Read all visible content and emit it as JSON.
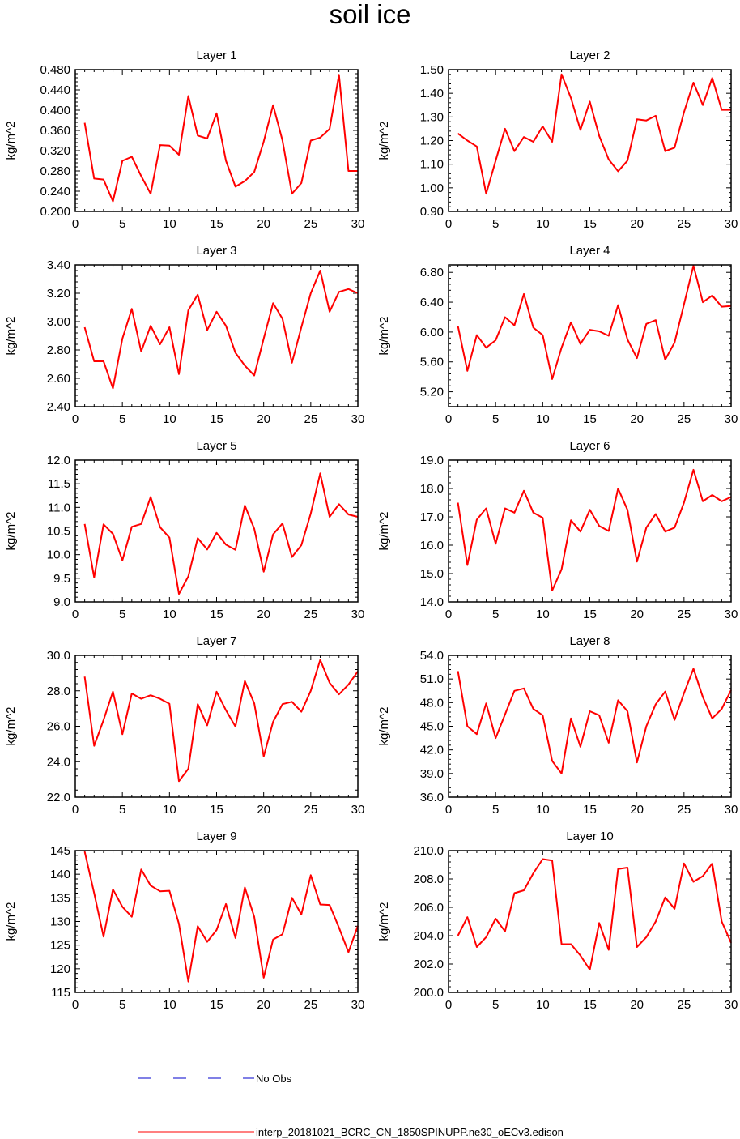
{
  "title": "soil ice",
  "colors": {
    "model": "#ff0000",
    "obs": "#0000cc",
    "axis": "#000000"
  },
  "legend": {
    "obs_label": "No Obs",
    "model_label": "interp_20181021_BCRC_CN_1850SPINUPP.ne30_oECv3.edison"
  },
  "chart_data": [
    {
      "type": "line",
      "title": "Layer 1",
      "ylabel": "kg/m^2",
      "xlim": [
        0,
        30
      ],
      "ylim": [
        0.2,
        0.48
      ],
      "xticks": [
        "0",
        "5",
        "10",
        "15",
        "20",
        "25",
        "30"
      ],
      "yticks": [
        "0.200",
        "0.240",
        "0.280",
        "0.320",
        "0.360",
        "0.400",
        "0.440",
        "0.480"
      ],
      "x": [
        1,
        2,
        3,
        4,
        5,
        6,
        7,
        8,
        9,
        10,
        11,
        12,
        13,
        14,
        15,
        16,
        17,
        18,
        19,
        20,
        21,
        22,
        23,
        24,
        25,
        26,
        27,
        28,
        29,
        30
      ],
      "series": [
        {
          "values": [
            0.375,
            0.265,
            0.263,
            0.22,
            0.3,
            0.308,
            0.27,
            0.235,
            0.331,
            0.33,
            0.312,
            0.428,
            0.35,
            0.344,
            0.394,
            0.3,
            0.249,
            0.26,
            0.278,
            0.338,
            0.41,
            0.34,
            0.235,
            0.256,
            0.34,
            0.346,
            0.363,
            0.47,
            0.28,
            0.28
          ]
        }
      ]
    },
    {
      "type": "line",
      "title": "Layer 2",
      "ylabel": "kg/m^2",
      "xlim": [
        0,
        30
      ],
      "ylim": [
        0.9,
        1.5
      ],
      "xticks": [
        "0",
        "5",
        "10",
        "15",
        "20",
        "25",
        "30"
      ],
      "yticks": [
        "0.90",
        "1.00",
        "1.10",
        "1.20",
        "1.30",
        "1.40",
        "1.50"
      ],
      "x": [
        1,
        2,
        3,
        4,
        5,
        6,
        7,
        8,
        9,
        10,
        11,
        12,
        13,
        14,
        15,
        16,
        17,
        18,
        19,
        20,
        21,
        22,
        23,
        24,
        25,
        26,
        27,
        28,
        29,
        30
      ],
      "series": [
        {
          "values": [
            1.23,
            1.2,
            1.175,
            0.975,
            1.115,
            1.25,
            1.155,
            1.215,
            1.195,
            1.26,
            1.195,
            1.48,
            1.38,
            1.245,
            1.365,
            1.22,
            1.12,
            1.07,
            1.115,
            1.29,
            1.285,
            1.305,
            1.155,
            1.17,
            1.32,
            1.445,
            1.35,
            1.465,
            1.33,
            1.33
          ]
        }
      ]
    },
    {
      "type": "line",
      "title": "Layer 3",
      "ylabel": "kg/m^2",
      "xlim": [
        0,
        30
      ],
      "ylim": [
        2.4,
        3.4
      ],
      "xticks": [
        "0",
        "5",
        "10",
        "15",
        "20",
        "25",
        "30"
      ],
      "yticks": [
        "2.40",
        "2.60",
        "2.80",
        "3.00",
        "3.20",
        "3.40"
      ],
      "x": [
        1,
        2,
        3,
        4,
        5,
        6,
        7,
        8,
        9,
        10,
        11,
        12,
        13,
        14,
        15,
        16,
        17,
        18,
        19,
        20,
        21,
        22,
        23,
        24,
        25,
        26,
        27,
        28,
        29,
        30
      ],
      "series": [
        {
          "values": [
            2.96,
            2.72,
            2.72,
            2.53,
            2.88,
            3.09,
            2.79,
            2.97,
            2.84,
            2.96,
            2.63,
            3.08,
            3.19,
            2.94,
            3.07,
            2.97,
            2.78,
            2.69,
            2.62,
            2.88,
            3.13,
            3.02,
            2.71,
            2.96,
            3.2,
            3.36,
            3.07,
            3.21,
            3.23,
            3.2
          ]
        }
      ]
    },
    {
      "type": "line",
      "title": "Layer 4",
      "ylabel": "kg/m^2",
      "xlim": [
        0,
        30
      ],
      "ylim": [
        5.0,
        6.9
      ],
      "xticks": [
        "0",
        "5",
        "10",
        "15",
        "20",
        "25",
        "30"
      ],
      "yticks": [
        "5.20",
        "5.60",
        "6.00",
        "6.40",
        "6.80"
      ],
      "x": [
        1,
        2,
        3,
        4,
        5,
        6,
        7,
        8,
        9,
        10,
        11,
        12,
        13,
        14,
        15,
        16,
        17,
        18,
        19,
        20,
        21,
        22,
        23,
        24,
        25,
        26,
        27,
        28,
        29,
        30
      ],
      "series": [
        {
          "values": [
            6.08,
            5.48,
            5.96,
            5.79,
            5.89,
            6.2,
            6.09,
            6.51,
            6.06,
            5.96,
            5.37,
            5.79,
            6.13,
            5.84,
            6.03,
            6.01,
            5.95,
            6.36,
            5.9,
            5.65,
            6.11,
            6.16,
            5.63,
            5.86,
            6.37,
            6.89,
            6.4,
            6.49,
            6.34,
            6.35
          ]
        }
      ]
    },
    {
      "type": "line",
      "title": "Layer 5",
      "ylabel": "kg/m^2",
      "xlim": [
        0,
        30
      ],
      "ylim": [
        9.0,
        12.0
      ],
      "xticks": [
        "0",
        "5",
        "10",
        "15",
        "20",
        "25",
        "30"
      ],
      "yticks": [
        "9.0",
        "9.5",
        "10.0",
        "10.5",
        "11.0",
        "11.5",
        "12.0"
      ],
      "x": [
        1,
        2,
        3,
        4,
        5,
        6,
        7,
        8,
        9,
        10,
        11,
        12,
        13,
        14,
        15,
        16,
        17,
        18,
        19,
        20,
        21,
        22,
        23,
        24,
        25,
        26,
        27,
        28,
        29,
        30
      ],
      "series": [
        {
          "values": [
            10.65,
            9.52,
            10.64,
            10.44,
            9.88,
            10.59,
            10.65,
            11.22,
            10.58,
            10.36,
            9.17,
            9.54,
            10.35,
            10.11,
            10.46,
            10.21,
            10.1,
            11.04,
            10.55,
            9.64,
            10.43,
            10.66,
            9.95,
            10.2,
            10.87,
            11.72,
            10.8,
            11.07,
            10.85,
            10.8
          ]
        }
      ]
    },
    {
      "type": "line",
      "title": "Layer 6",
      "ylabel": "kg/m^2",
      "xlim": [
        0,
        30
      ],
      "ylim": [
        14.0,
        19.0
      ],
      "xticks": [
        "0",
        "5",
        "10",
        "15",
        "20",
        "25",
        "30"
      ],
      "yticks": [
        "14.0",
        "15.0",
        "16.0",
        "17.0",
        "18.0",
        "19.0"
      ],
      "x": [
        1,
        2,
        3,
        4,
        5,
        6,
        7,
        8,
        9,
        10,
        11,
        12,
        13,
        14,
        15,
        16,
        17,
        18,
        19,
        20,
        21,
        22,
        23,
        24,
        25,
        26,
        27,
        28,
        29,
        30
      ],
      "series": [
        {
          "values": [
            17.5,
            15.3,
            16.9,
            17.3,
            16.05,
            17.3,
            17.15,
            17.92,
            17.15,
            16.97,
            14.4,
            15.15,
            16.88,
            16.48,
            17.25,
            16.68,
            16.5,
            18.0,
            17.25,
            15.42,
            16.62,
            17.1,
            16.48,
            16.62,
            17.5,
            18.66,
            17.55,
            17.77,
            17.55,
            17.7
          ]
        }
      ]
    },
    {
      "type": "line",
      "title": "Layer 7",
      "ylabel": "kg/m^2",
      "xlim": [
        0,
        30
      ],
      "ylim": [
        22.0,
        30.0
      ],
      "xticks": [
        "0",
        "5",
        "10",
        "15",
        "20",
        "25",
        "30"
      ],
      "yticks": [
        "22.0",
        "24.0",
        "26.0",
        "28.0",
        "30.0"
      ],
      "x": [
        1,
        2,
        3,
        4,
        5,
        6,
        7,
        8,
        9,
        10,
        11,
        12,
        13,
        14,
        15,
        16,
        17,
        18,
        19,
        20,
        21,
        22,
        23,
        24,
        25,
        26,
        27,
        28,
        29,
        30
      ],
      "series": [
        {
          "values": [
            28.8,
            24.9,
            26.35,
            27.95,
            25.55,
            27.85,
            27.55,
            27.75,
            27.55,
            27.27,
            22.9,
            23.6,
            27.25,
            26.05,
            27.95,
            26.9,
            25.98,
            28.55,
            27.3,
            24.3,
            26.25,
            27.25,
            27.38,
            26.82,
            28.0,
            29.75,
            28.45,
            27.8,
            28.35,
            29.1
          ]
        }
      ]
    },
    {
      "type": "line",
      "title": "Layer 8",
      "ylabel": "kg/m^2",
      "xlim": [
        0,
        30
      ],
      "ylim": [
        36.0,
        54.0
      ],
      "xticks": [
        "0",
        "5",
        "10",
        "15",
        "20",
        "25",
        "30"
      ],
      "yticks": [
        "36.0",
        "39.0",
        "42.0",
        "45.0",
        "48.0",
        "51.0",
        "54.0"
      ],
      "x": [
        1,
        2,
        3,
        4,
        5,
        6,
        7,
        8,
        9,
        10,
        11,
        12,
        13,
        14,
        15,
        16,
        17,
        18,
        19,
        20,
        21,
        22,
        23,
        24,
        25,
        26,
        27,
        28,
        29,
        30
      ],
      "series": [
        {
          "values": [
            52.0,
            45.0,
            44.0,
            47.9,
            43.5,
            46.5,
            49.5,
            49.8,
            47.2,
            46.4,
            40.6,
            39.0,
            46.0,
            42.4,
            46.9,
            46.4,
            42.9,
            48.3,
            46.9,
            40.4,
            45.0,
            47.8,
            49.4,
            45.8,
            49.2,
            52.3,
            48.7,
            46.0,
            47.2,
            49.6
          ]
        }
      ]
    },
    {
      "type": "line",
      "title": "Layer 9",
      "ylabel": "kg/m^2",
      "xlim": [
        0,
        30
      ],
      "ylim": [
        115,
        145
      ],
      "xticks": [
        "0",
        "5",
        "10",
        "15",
        "20",
        "25",
        "30"
      ],
      "yticks": [
        "115",
        "120",
        "125",
        "130",
        "135",
        "140",
        "145"
      ],
      "x": [
        1,
        2,
        3,
        4,
        5,
        6,
        7,
        8,
        9,
        10,
        11,
        12,
        13,
        14,
        15,
        16,
        17,
        18,
        19,
        20,
        21,
        22,
        23,
        24,
        25,
        26,
        27,
        28,
        29,
        30
      ],
      "series": [
        {
          "values": [
            144.8,
            136.0,
            126.8,
            136.8,
            133.1,
            131.0,
            141.0,
            137.6,
            136.4,
            136.5,
            129.5,
            117.3,
            129.0,
            125.7,
            128.2,
            133.7,
            126.5,
            137.2,
            131.0,
            118.1,
            126.2,
            127.3,
            135.0,
            131.5,
            139.8,
            133.6,
            133.5,
            128.7,
            123.5,
            129.1
          ]
        }
      ]
    },
    {
      "type": "line",
      "title": "Layer 10",
      "ylabel": "kg/m^2",
      "xlim": [
        0,
        30
      ],
      "ylim": [
        200.0,
        210.0
      ],
      "xticks": [
        "0",
        "5",
        "10",
        "15",
        "20",
        "25",
        "30"
      ],
      "yticks": [
        "200.0",
        "202.0",
        "204.0",
        "206.0",
        "208.0",
        "210.0"
      ],
      "x": [
        1,
        2,
        3,
        4,
        5,
        6,
        7,
        8,
        9,
        10,
        11,
        12,
        13,
        14,
        15,
        16,
        17,
        18,
        19,
        20,
        21,
        22,
        23,
        24,
        25,
        26,
        27,
        28,
        29,
        30
      ],
      "series": [
        {
          "values": [
            204.0,
            205.3,
            203.2,
            203.9,
            205.2,
            204.3,
            207.0,
            207.2,
            208.4,
            209.4,
            209.3,
            203.4,
            203.4,
            202.6,
            201.6,
            204.9,
            203.0,
            208.7,
            208.8,
            203.2,
            203.9,
            205.0,
            206.7,
            205.9,
            209.1,
            207.8,
            208.2,
            209.1,
            205.0,
            203.5
          ]
        }
      ]
    }
  ]
}
